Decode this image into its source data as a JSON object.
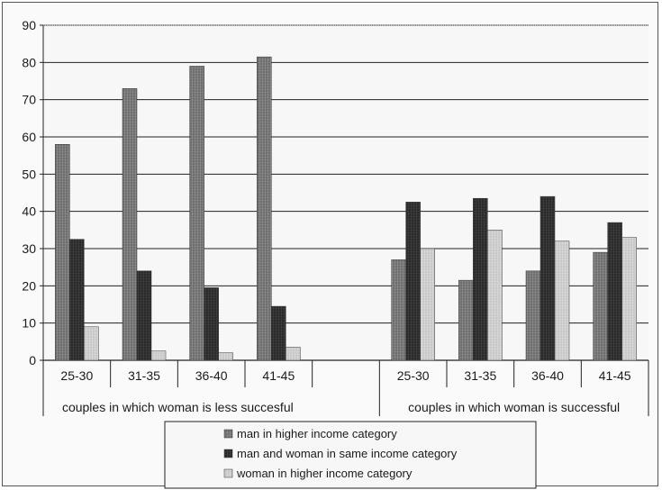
{
  "chart_data": {
    "type": "bar",
    "ylim": [
      0,
      90
    ],
    "yticks": [
      "0",
      "10",
      "20",
      "30",
      "40",
      "50",
      "60",
      "70",
      "80",
      "90"
    ],
    "grid": true,
    "legend_position": "bottom",
    "groups": [
      {
        "label": "couples in which woman is less succesful",
        "categories": [
          "25-30",
          "31-35",
          "36-40",
          "41-45"
        ]
      },
      {
        "label": "couples in which woman is successful",
        "categories": [
          "25-30",
          "31-35",
          "36-40",
          "41-45"
        ]
      }
    ],
    "series": [
      {
        "name": "man in higher income category",
        "color": "#6e6e6e",
        "values": [
          58,
          73,
          79,
          81.5,
          27,
          21.5,
          24,
          29
        ]
      },
      {
        "name": "man and woman in same income category",
        "color": "#2a2a2a",
        "values": [
          32.5,
          24,
          19.5,
          14.5,
          42.5,
          43.5,
          44,
          37
        ]
      },
      {
        "name": "woman in higher income category",
        "color": "#c8c8c8",
        "values": [
          9,
          2.5,
          2,
          3.5,
          30,
          35,
          32,
          33
        ]
      }
    ]
  }
}
